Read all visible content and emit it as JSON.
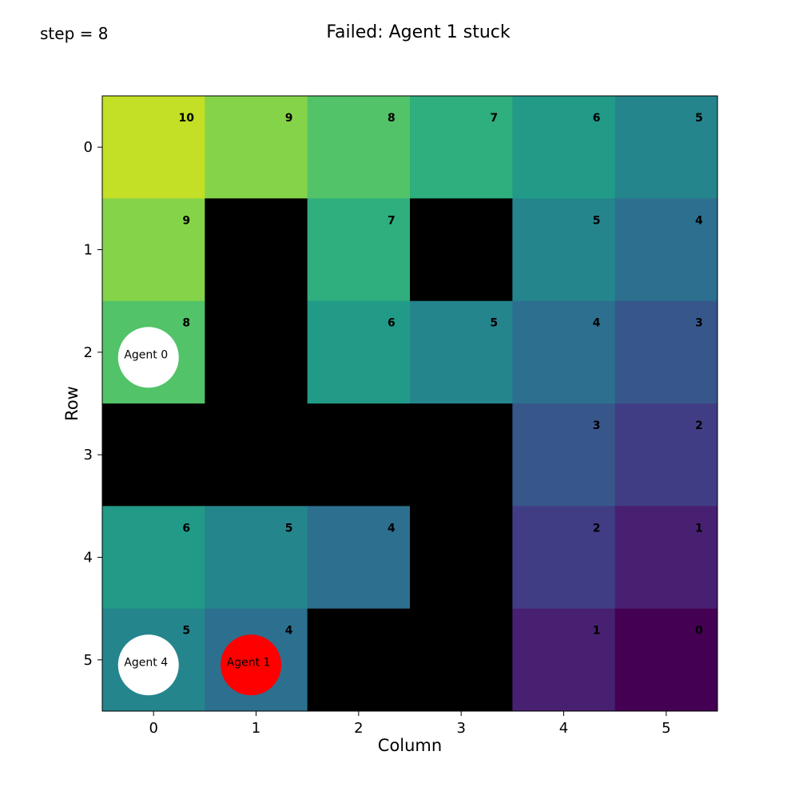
{
  "step_label": "step = 8",
  "title": "Failed: Agent 1 stuck",
  "xlabel": "Column",
  "ylabel": "Row",
  "x_ticks": [
    "0",
    "1",
    "2",
    "3",
    "4",
    "5"
  ],
  "y_ticks": [
    "0",
    "1",
    "2",
    "3",
    "4",
    "5"
  ],
  "grid": {
    "rows": 6,
    "cols": 6,
    "values": [
      [
        10,
        9,
        8,
        7,
        6,
        5
      ],
      [
        9,
        null,
        7,
        null,
        5,
        4
      ],
      [
        8,
        null,
        6,
        5,
        4,
        3
      ],
      [
        null,
        null,
        null,
        null,
        3,
        2
      ],
      [
        6,
        5,
        4,
        null,
        2,
        1
      ],
      [
        5,
        4,
        null,
        null,
        1,
        0
      ]
    ],
    "colormap": "viridis",
    "vmin": 0,
    "vmax": 11,
    "wall_color": "#000000"
  },
  "agents": [
    {
      "label": "Agent 0",
      "row": 2,
      "col": 0,
      "color": "#ffffff"
    },
    {
      "label": "Agent 4",
      "row": 5,
      "col": 0,
      "color": "#ffffff"
    },
    {
      "label": "Agent 1",
      "row": 5,
      "col": 1,
      "color": "#ff0000"
    }
  ]
}
